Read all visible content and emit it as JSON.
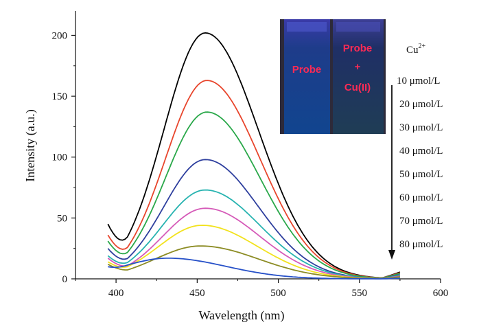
{
  "chart_data": {
    "type": "line",
    "title": "",
    "xlabel": "Wavelength (nm)",
    "ylabel": "Intensity (a.u.)",
    "xlim": [
      375,
      600
    ],
    "ylim": [
      0,
      220
    ],
    "xticks": [
      400,
      450,
      500,
      550,
      600
    ],
    "yticks": [
      0,
      50,
      100,
      150,
      200
    ],
    "grid": false,
    "colors": [
      "#000000",
      "#e8452c",
      "#2aa84a",
      "#2e3f9e",
      "#27b3b0",
      "#d55ab8",
      "#f2e21d",
      "#8c8c24",
      "#2650c8"
    ],
    "series": [
      {
        "peak_x": 455,
        "peak": 202,
        "start": 45,
        "end": 10,
        "width": 44
      },
      {
        "peak_x": 456,
        "peak": 163,
        "start": 36,
        "end": 9,
        "width": 44
      },
      {
        "peak_x": 456,
        "peak": 137,
        "start": 31,
        "end": 8,
        "width": 44
      },
      {
        "peak_x": 455,
        "peak": 98,
        "start": 25,
        "end": 6,
        "width": 44
      },
      {
        "peak_x": 455,
        "peak": 73,
        "start": 19,
        "end": 5,
        "width": 45
      },
      {
        "peak_x": 455,
        "peak": 58,
        "start": 17,
        "end": 4,
        "width": 45
      },
      {
        "peak_x": 453,
        "peak": 44,
        "start": 14,
        "end": 3,
        "width": 46
      },
      {
        "peak_x": 452,
        "peak": 27,
        "start": 12,
        "end": 3,
        "width": 48
      },
      {
        "peak_x": 432,
        "peak": 17,
        "start": 10,
        "end": 1,
        "width": 48
      }
    ],
    "legend": {
      "title_base": "Cu",
      "title_sup": "2+",
      "entries": [
        "10 μmol/L",
        "20 μmol/L",
        "30 μmol/L",
        "40 μmol/L",
        "50 μmol/L",
        "60 μmol/L",
        "70 μmol/L",
        "80 μmol/L"
      ]
    },
    "inset": {
      "left_label": "Probe",
      "right_label_1": "Probe",
      "right_label_2": "+",
      "right_label_3": "Cu(II)"
    }
  }
}
